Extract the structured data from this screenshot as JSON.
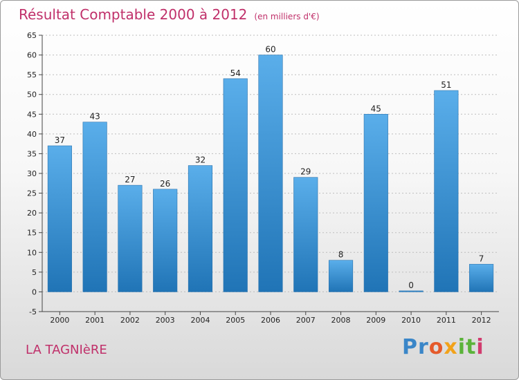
{
  "header": {
    "title": "Résultat Comptable 2000 à 2012",
    "subtitle": "(en milliers d'€)"
  },
  "footer": {
    "commune": "LA TAGNIèRE",
    "logo": [
      "Pr",
      "o",
      "x",
      "it",
      "i"
    ]
  },
  "colors": {
    "bar_light": "#5aaeea",
    "bar_dark": "#2074b6",
    "title": "#c0306a",
    "grid": "#bdbdbd"
  },
  "chart_data": {
    "type": "bar",
    "categories": [
      "2000",
      "2001",
      "2002",
      "2003",
      "2004",
      "2005",
      "2006",
      "2007",
      "2008",
      "2009",
      "2010",
      "2011",
      "2012"
    ],
    "values": [
      37,
      43,
      27,
      26,
      32,
      54,
      60,
      29,
      8,
      45,
      0,
      51,
      7
    ],
    "data_labels": [
      "37",
      "43",
      "27",
      "26",
      "32",
      "54",
      "60",
      "29",
      "8",
      "45",
      "0",
      "51",
      "7"
    ],
    "ylim": [
      -5,
      65
    ],
    "ytick_step": 5,
    "yticks": [
      "-5",
      "0",
      "5",
      "10",
      "15",
      "20",
      "25",
      "30",
      "35",
      "40",
      "45",
      "50",
      "55",
      "60",
      "65"
    ],
    "grid": true,
    "legend": "none"
  }
}
